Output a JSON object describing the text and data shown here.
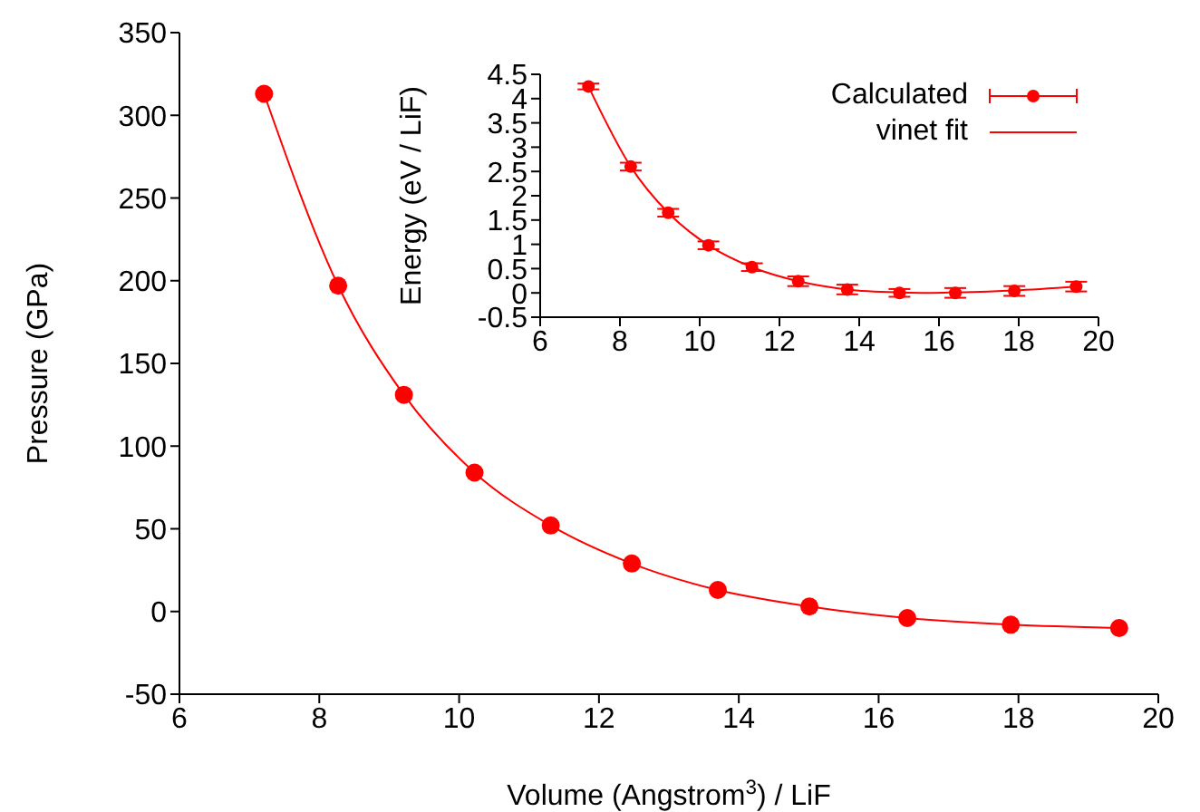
{
  "chart_data": [
    {
      "type": "scatter",
      "xlabel": "Volume (Angstrom$^{3}$) / LiF",
      "ylabel": "Pressure (GPa)",
      "xlim": [
        6,
        20
      ],
      "xticks": [
        6,
        8,
        10,
        12,
        14,
        16,
        18,
        20
      ],
      "ylim": [
        -50,
        350
      ],
      "yticks": [
        -50,
        0,
        50,
        100,
        150,
        200,
        250,
        300,
        350
      ],
      "legend": false,
      "grid": false,
      "series": [
        {
          "marker": "circle",
          "color": "#ff0000",
          "x": [
            7.21,
            8.27,
            9.21,
            10.22,
            11.31,
            12.47,
            13.7,
            15.01,
            16.41,
            17.89,
            19.44
          ],
          "values": [
            313,
            197,
            131,
            84,
            52,
            29,
            13,
            3,
            -4,
            -8,
            -10
          ]
        },
        {
          "type": "line",
          "color": "#ff0000",
          "line_style": "solid",
          "x": [
            7.21,
            8.27,
            9.21,
            10.22,
            11.31,
            12.47,
            13.7,
            15.01,
            16.41,
            17.89,
            19.44
          ],
          "values": [
            313,
            197,
            131,
            84,
            52,
            29,
            13,
            3,
            -4,
            -8,
            -10
          ]
        }
      ]
    },
    {
      "type": "scatter",
      "ylabel": "Energy (eV / LiF)",
      "xlim": [
        6,
        20
      ],
      "xticks": [
        6,
        8,
        10,
        12,
        14,
        16,
        18,
        20
      ],
      "ylim": [
        -0.5,
        4.5
      ],
      "yticks": [
        -0.5,
        0,
        0.5,
        1,
        1.5,
        2,
        2.5,
        3,
        3.5,
        4,
        4.5
      ],
      "legend": "top right",
      "grid": false,
      "series": [
        {
          "name": "Calculated",
          "marker": "circle",
          "color": "#ff0000",
          "x": [
            7.21,
            8.27,
            9.21,
            10.22,
            11.31,
            12.47,
            13.7,
            15.01,
            16.41,
            17.89,
            19.44
          ],
          "values": [
            4.25,
            2.6,
            1.65,
            0.98,
            0.53,
            0.24,
            0.07,
            0.0,
            0.0,
            0.04,
            0.13
          ],
          "errors": [
            0.06,
            0.08,
            0.08,
            0.08,
            0.08,
            0.1,
            0.1,
            0.08,
            0.1,
            0.1,
            0.1
          ]
        },
        {
          "type": "line",
          "name": "vinet fit",
          "color": "#ff0000",
          "line_style": "solid",
          "x": [
            7.21,
            8.27,
            9.21,
            10.22,
            11.31,
            12.47,
            13.7,
            15.01,
            15.8,
            16.41,
            17.89,
            19.44
          ],
          "values": [
            4.25,
            2.6,
            1.65,
            0.98,
            0.53,
            0.24,
            0.07,
            0.01,
            0.0,
            0.01,
            0.05,
            0.13
          ]
        }
      ]
    }
  ]
}
